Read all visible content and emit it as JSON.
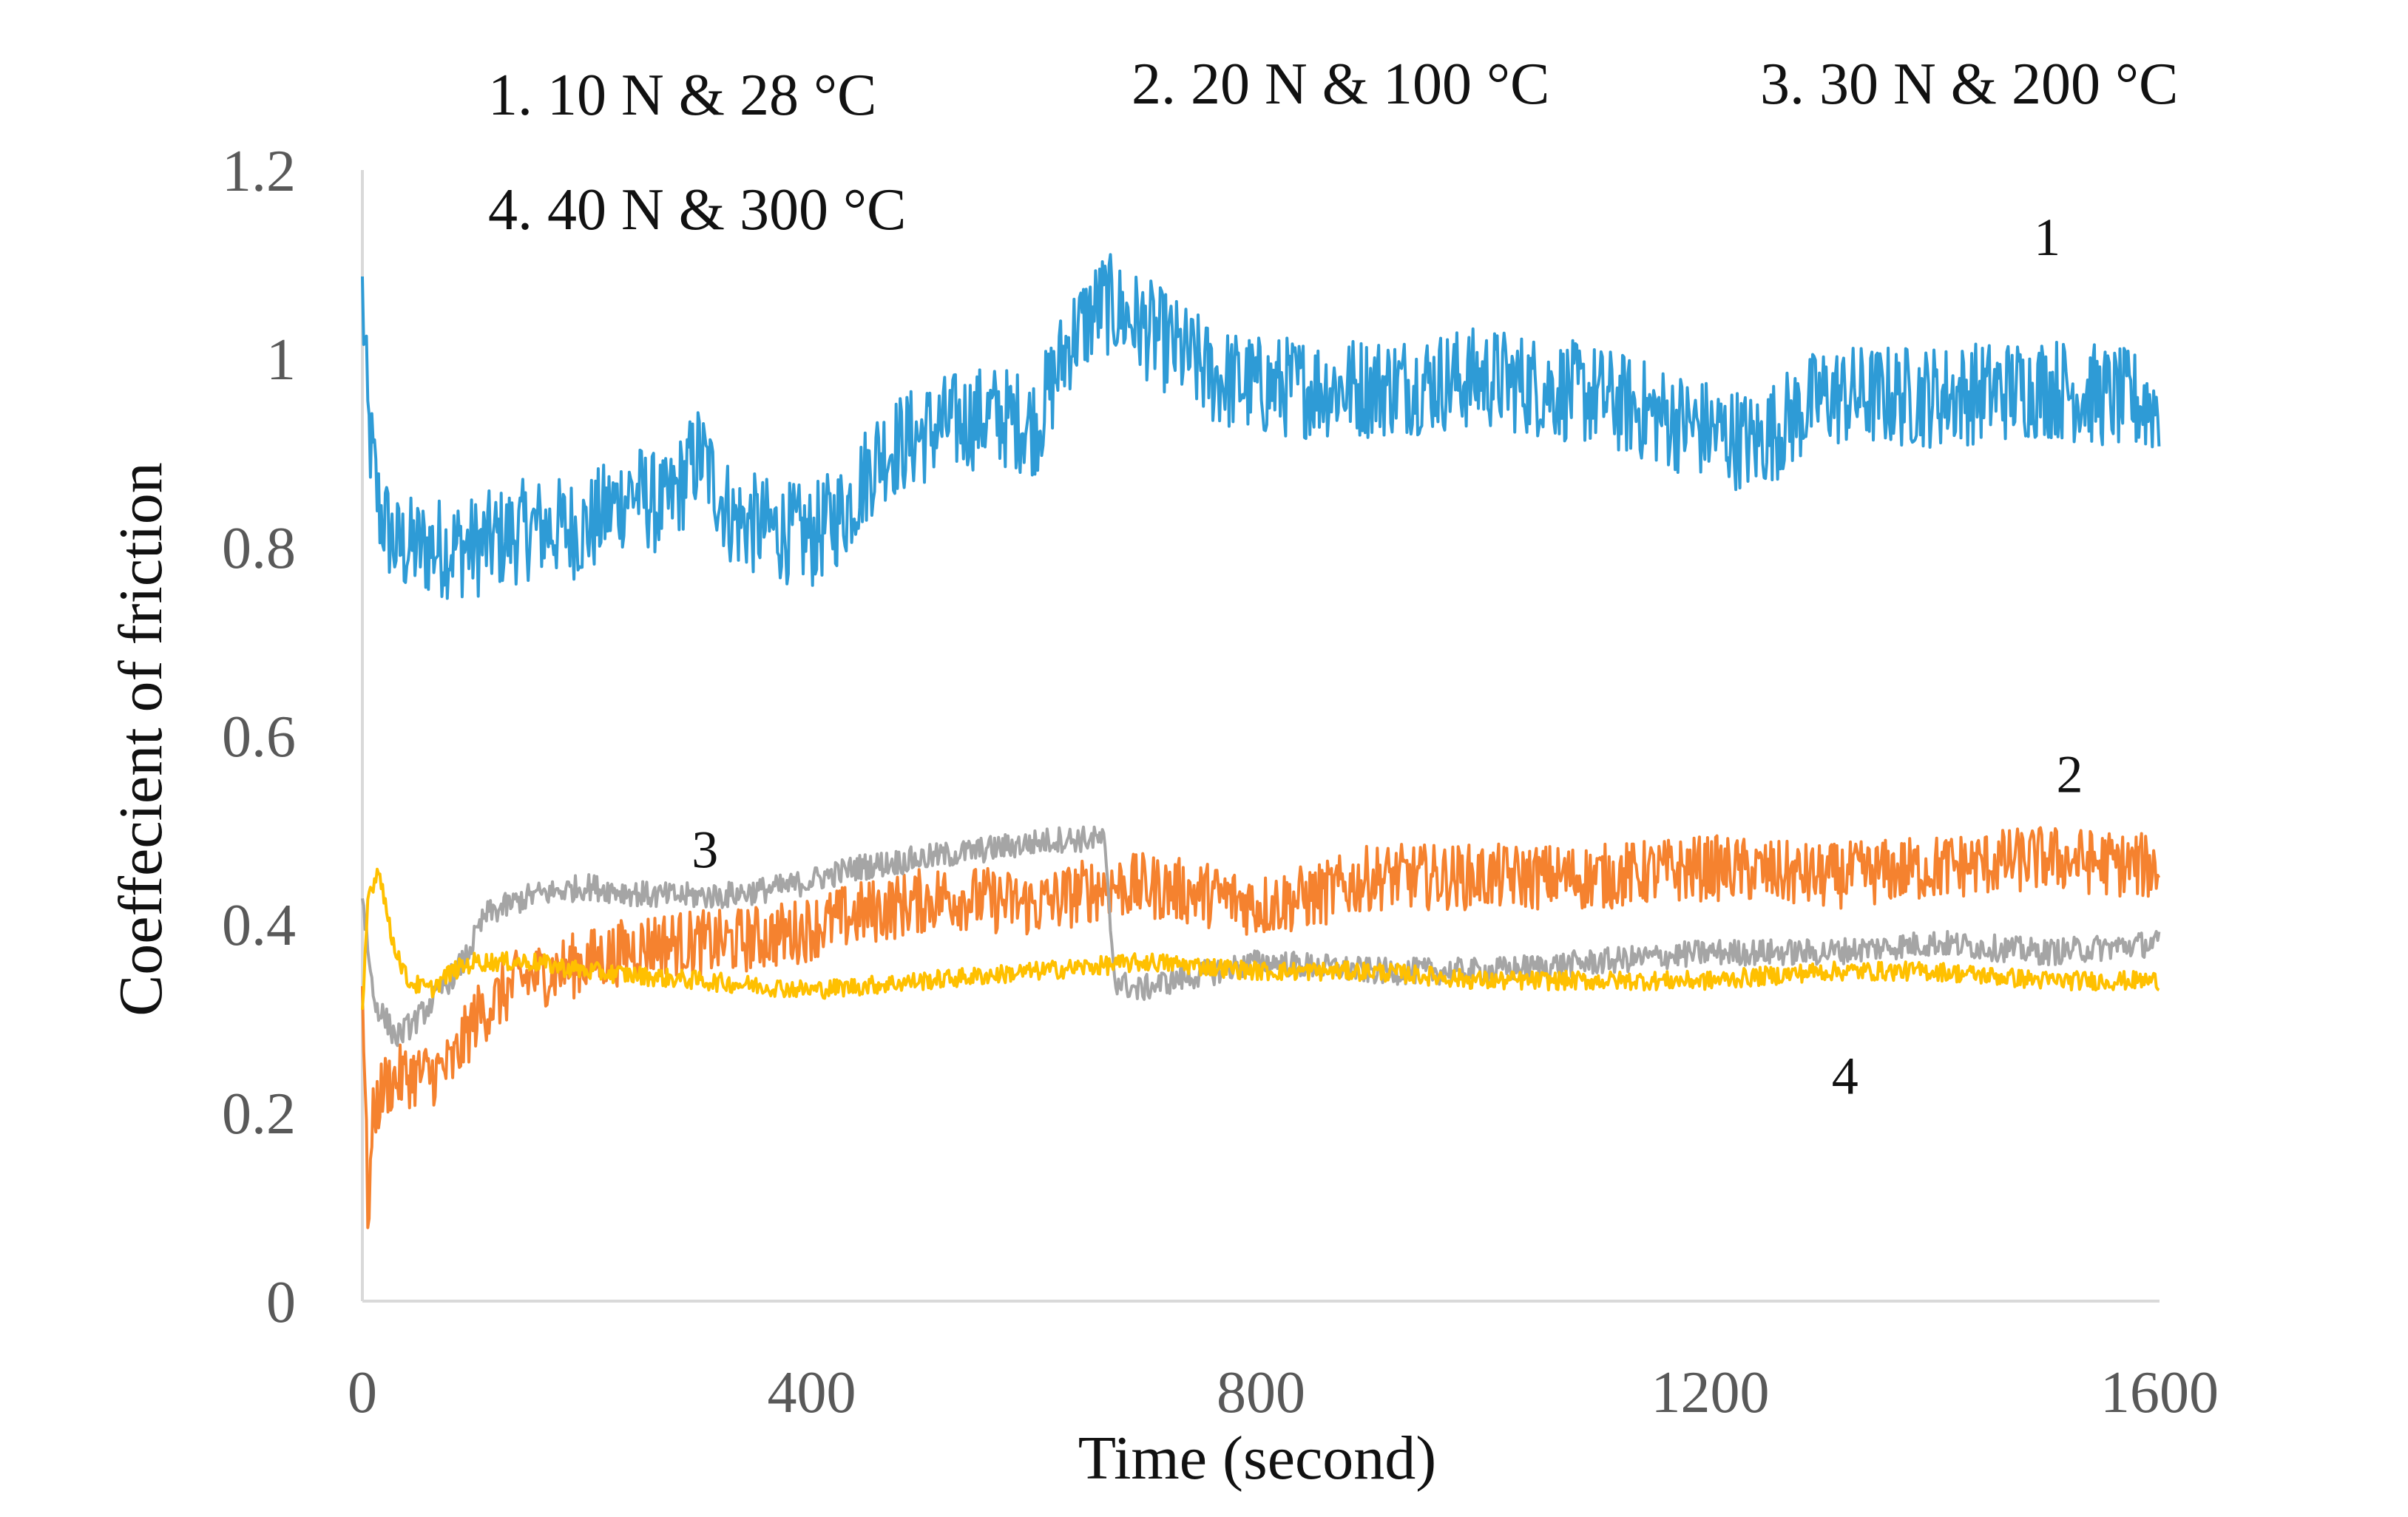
{
  "chart_data": {
    "type": "line",
    "title": "",
    "xlabel": "Time (second)",
    "ylabel": "Coeffecient of friction",
    "xlim": [
      0,
      1600
    ],
    "ylim": [
      0,
      1.2
    ],
    "x_ticks": [
      0,
      400,
      800,
      1200,
      1600
    ],
    "y_ticks": [
      0,
      0.2,
      0.4,
      0.6,
      0.8,
      1,
      1.2
    ],
    "y_tick_labels": [
      "0",
      "0.2",
      "0.4",
      "0.6",
      "0.8",
      "1",
      "1.2"
    ],
    "grid": false,
    "legend": [
      "1.  10 N & 28 °C",
      "2.  20 N & 100 °C",
      "3.  30 N & 200 °C",
      "4.  40 N & 300 °C"
    ],
    "legend_position": "top",
    "series": [
      {
        "name": "1",
        "label": "1",
        "condition": "10 N & 28 °C",
        "color": "#2E9BD6",
        "noise": 0.055,
        "x": [
          0,
          5,
          15,
          30,
          60,
          100,
          150,
          200,
          240,
          270,
          300,
          330,
          360,
          400,
          430,
          460,
          480,
          520,
          560,
          600,
          630,
          660,
          700,
          760,
          800,
          900,
          1000,
          1100,
          1180,
          1240,
          1300,
          1400,
          1500,
          1600
        ],
        "y": [
          1.07,
          0.93,
          0.84,
          0.8,
          0.8,
          0.8,
          0.82,
          0.82,
          0.86,
          0.84,
          0.9,
          0.83,
          0.82,
          0.81,
          0.84,
          0.9,
          0.91,
          0.93,
          0.94,
          0.93,
          1.02,
          1.06,
          1.03,
          0.98,
          0.97,
          0.97,
          0.98,
          0.96,
          0.93,
          0.91,
          0.96,
          0.96,
          0.97,
          0.95
        ]
      },
      {
        "name": "2",
        "label": "2",
        "condition": "20 N & 100 °C",
        "color": "#F5822F",
        "noise": 0.035,
        "x": [
          0,
          5,
          10,
          20,
          40,
          60,
          80,
          100,
          140,
          200,
          260,
          320,
          380,
          440,
          520,
          600,
          660,
          700,
          760,
          800,
          850,
          900,
          1000,
          1100,
          1200,
          1300,
          1400,
          1500,
          1600
        ],
        "y": [
          0.34,
          0.09,
          0.2,
          0.23,
          0.24,
          0.24,
          0.25,
          0.3,
          0.34,
          0.36,
          0.38,
          0.38,
          0.39,
          0.41,
          0.43,
          0.42,
          0.44,
          0.44,
          0.43,
          0.42,
          0.43,
          0.45,
          0.45,
          0.45,
          0.46,
          0.45,
          0.46,
          0.47,
          0.46
        ]
      },
      {
        "name": "3",
        "label": "3",
        "condition": "30 N & 200 °C",
        "color": "#A5A5A5",
        "noise": 0.014,
        "x": [
          0,
          10,
          30,
          50,
          70,
          90,
          110,
          150,
          200,
          260,
          320,
          380,
          440,
          500,
          560,
          620,
          660,
          670,
          690,
          720,
          800,
          900,
          1000,
          1100,
          1200,
          1300,
          1400,
          1500,
          1600
        ],
        "y": [
          0.43,
          0.32,
          0.28,
          0.3,
          0.33,
          0.36,
          0.41,
          0.43,
          0.44,
          0.43,
          0.43,
          0.44,
          0.46,
          0.47,
          0.48,
          0.49,
          0.49,
          0.34,
          0.33,
          0.34,
          0.36,
          0.35,
          0.35,
          0.36,
          0.37,
          0.37,
          0.38,
          0.37,
          0.38
        ]
      },
      {
        "name": "4",
        "label": "4",
        "condition": "40 N & 300 °C",
        "color": "#FFC000",
        "noise": 0.01,
        "x": [
          0,
          5,
          15,
          25,
          40,
          60,
          80,
          100,
          150,
          200,
          300,
          400,
          500,
          600,
          700,
          800,
          900,
          1000,
          1100,
          1200,
          1300,
          1400,
          1500,
          1600
        ],
        "y": [
          0.3,
          0.43,
          0.46,
          0.39,
          0.34,
          0.33,
          0.35,
          0.36,
          0.36,
          0.35,
          0.34,
          0.33,
          0.34,
          0.35,
          0.36,
          0.35,
          0.35,
          0.34,
          0.34,
          0.34,
          0.35,
          0.35,
          0.34,
          0.34
        ]
      }
    ]
  }
}
